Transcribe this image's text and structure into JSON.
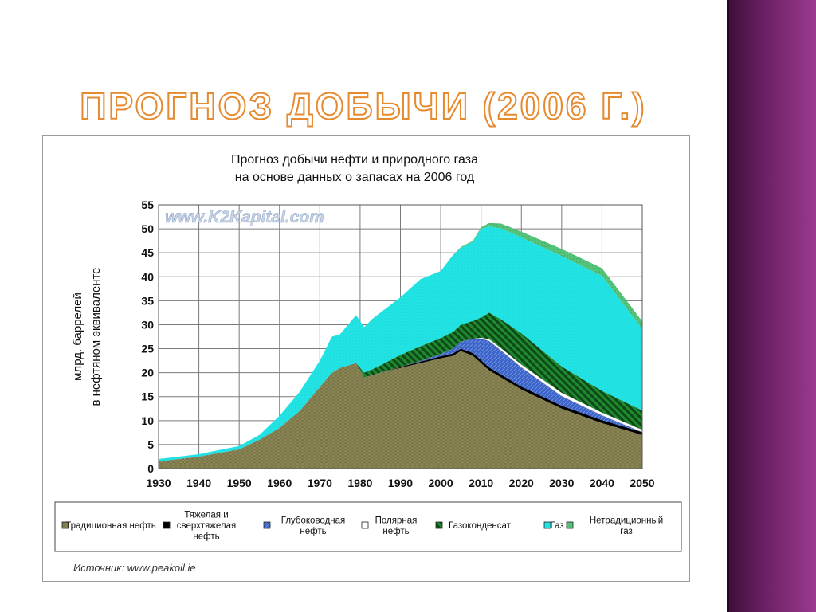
{
  "slide": {
    "title": "Прогноз добычи  (2006 г.)"
  },
  "chart_data": {
    "type": "area",
    "stacked": true,
    "title": [
      "Прогноз добычи нефти и природного газа",
      "на основе данных о запасах на 2006 год"
    ],
    "ylabel": [
      "млрд. баррелей",
      "в нефтяном эквиваленте"
    ],
    "xlabel": "",
    "xlim": [
      1930,
      2050
    ],
    "ylim": [
      0,
      55
    ],
    "xticks": [
      1930,
      1940,
      1950,
      1960,
      1970,
      1980,
      1990,
      2000,
      2010,
      2020,
      2030,
      2040,
      2050
    ],
    "yticks": [
      0,
      5,
      10,
      15,
      20,
      25,
      30,
      35,
      40,
      45,
      50,
      55
    ],
    "grid": true,
    "watermark": "www.K2Kapital.com",
    "source": "Источник: www.peakoil.ie",
    "legend_position": "bottom",
    "x": [
      1930,
      1940,
      1950,
      1955,
      1960,
      1965,
      1970,
      1973,
      1975,
      1979,
      1981,
      1983,
      1985,
      1990,
      1995,
      2000,
      2003,
      2005,
      2008,
      2010,
      2012,
      2015,
      2020,
      2030,
      2040,
      2050
    ],
    "series": [
      {
        "name": "Традиционная нефть",
        "color": "#8b8754",
        "values": [
          1.5,
          2.5,
          4,
          6,
          8.5,
          12,
          17,
          20,
          21,
          22,
          19,
          19.5,
          20,
          21,
          22,
          23,
          23.5,
          24.5,
          23.5,
          22,
          20.5,
          19,
          16.5,
          12.5,
          9.5,
          7
        ]
      },
      {
        "name": "Тяжелая и\nсверхтяжелая\nнефть",
        "color": "#000000",
        "values": [
          0,
          0,
          0,
          0,
          0,
          0,
          0,
          0,
          0,
          0,
          0,
          0,
          0,
          0.2,
          0.3,
          0.4,
          0.5,
          0.5,
          0.6,
          0.6,
          0.6,
          0.6,
          0.6,
          0.6,
          0.6,
          0.6
        ]
      },
      {
        "name": "Глубоководная\nнефть",
        "color": "#3a63c9",
        "values": [
          0,
          0,
          0,
          0,
          0,
          0,
          0,
          0,
          0,
          0,
          0,
          0,
          0,
          0,
          0.2,
          0.5,
          1,
          1.5,
          3,
          4.5,
          5.5,
          5,
          4,
          2,
          1,
          0
        ]
      },
      {
        "name": "Полярная\nнефть",
        "color": "#ffffff",
        "values": [
          0,
          0,
          0,
          0,
          0,
          0,
          0,
          0,
          0,
          0,
          0,
          0,
          0,
          0,
          0,
          0,
          0,
          0,
          0,
          0.2,
          0.4,
          0.5,
          0.6,
          0.7,
          0.6,
          0.5
        ]
      },
      {
        "name": "Газоконденсат",
        "color": "#1a7a2a",
        "values": [
          0,
          0,
          0,
          0,
          0,
          0,
          0,
          0,
          0,
          0,
          1,
          1.2,
          1.5,
          2.5,
          3,
          3.3,
          3.5,
          3.5,
          3.7,
          4.2,
          5.5,
          6,
          6.5,
          5.5,
          4.5,
          4
        ]
      },
      {
        "name": "Газ",
        "color": "#22e3e3",
        "values": [
          0.5,
          0.5,
          0.7,
          1,
          2.5,
          4,
          5.5,
          7.5,
          7,
          10,
          9.5,
          10.5,
          11,
          12,
          14,
          14,
          16,
          16,
          16.5,
          18.5,
          18,
          19,
          20,
          23,
          24,
          17
        ]
      },
      {
        "name": "Нетрадиционный\nгаз",
        "color": "#55c47a",
        "values": [
          0,
          0,
          0,
          0,
          0,
          0,
          0,
          0,
          0,
          0,
          0,
          0,
          0,
          0,
          0,
          0,
          0,
          0.2,
          0.2,
          0.3,
          0.7,
          1,
          1.2,
          1.5,
          1.6,
          1.6
        ]
      }
    ]
  }
}
